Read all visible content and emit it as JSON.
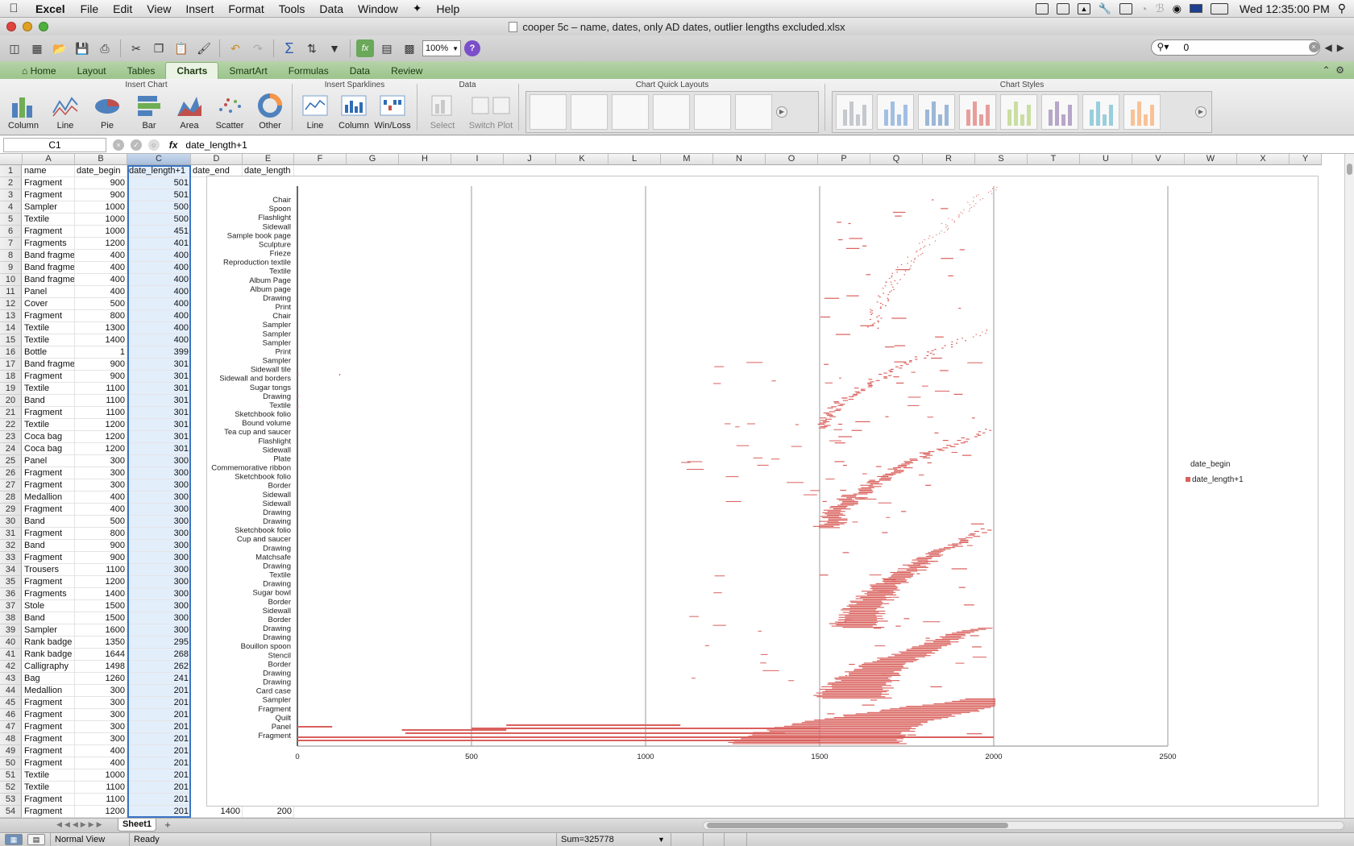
{
  "menubar": {
    "app_name": "Excel",
    "items": [
      "File",
      "Edit",
      "View",
      "Insert",
      "Format",
      "Tools",
      "Data",
      "Window",
      "Help"
    ],
    "clock": "Wed 12:35:00 PM"
  },
  "window": {
    "title": "cooper 5c – name, dates, only AD dates, outlier lengths excluded.xlsx"
  },
  "toolbar": {
    "zoom": "100%",
    "search_value": "0"
  },
  "ribbon": {
    "tabs": [
      "Home",
      "Layout",
      "Tables",
      "Charts",
      "SmartArt",
      "Formulas",
      "Data",
      "Review"
    ],
    "active_tab": "Charts",
    "groups": {
      "insert_chart": "Insert Chart",
      "insert_sparklines": "Insert Sparklines",
      "data": "Data",
      "quick_layouts": "Chart Quick Layouts",
      "chart_styles": "Chart Styles"
    },
    "insert_chart_buttons": [
      "Column",
      "Line",
      "Pie",
      "Bar",
      "Area",
      "Scatter",
      "Other"
    ],
    "sparkline_buttons": [
      "Line",
      "Column",
      "Win/Loss"
    ],
    "data_buttons": [
      "Select",
      "Switch Plot"
    ],
    "style_colors": [
      "#9aa0a8",
      "#5b8fd1",
      "#4f81bd",
      "#d9534f",
      "#a4c95a",
      "#8064a2",
      "#4bacc6",
      "#f79646"
    ]
  },
  "formula_bar": {
    "cell_ref": "C1",
    "formula": "date_length+1"
  },
  "grid": {
    "columns": [
      "A",
      "B",
      "C",
      "D",
      "E",
      "F",
      "G",
      "H",
      "I",
      "J",
      "K",
      "L",
      "M",
      "N",
      "O",
      "P",
      "Q",
      "R",
      "S",
      "T",
      "U",
      "V",
      "W",
      "X",
      "Y"
    ],
    "selected_column": "C",
    "headers": [
      "name",
      "date_begin",
      "date_length+1",
      "date_end",
      "date_length"
    ],
    "rows": [
      [
        "Fragment",
        "900",
        "501"
      ],
      [
        "Fragment",
        "900",
        "501"
      ],
      [
        "Sampler",
        "1000",
        "500"
      ],
      [
        "Textile",
        "1000",
        "500"
      ],
      [
        "Fragment",
        "1000",
        "451"
      ],
      [
        "Fragments",
        "1200",
        "401"
      ],
      [
        "Band fragme",
        "400",
        "400"
      ],
      [
        "Band fragme",
        "400",
        "400"
      ],
      [
        "Band fragme",
        "400",
        "400"
      ],
      [
        "Panel",
        "400",
        "400"
      ],
      [
        "Cover",
        "500",
        "400"
      ],
      [
        "Fragment",
        "800",
        "400"
      ],
      [
        "Textile",
        "1300",
        "400"
      ],
      [
        "Textile",
        "1400",
        "400"
      ],
      [
        "Bottle",
        "1",
        "399"
      ],
      [
        "Band fragme",
        "900",
        "301"
      ],
      [
        "Fragment",
        "900",
        "301"
      ],
      [
        "Textile",
        "1100",
        "301"
      ],
      [
        "Band",
        "1100",
        "301"
      ],
      [
        "Fragment",
        "1100",
        "301"
      ],
      [
        "Textile",
        "1200",
        "301"
      ],
      [
        "Coca bag",
        "1200",
        "301"
      ],
      [
        "Coca bag",
        "1200",
        "301"
      ],
      [
        "Panel",
        "300",
        "300"
      ],
      [
        "Fragment",
        "300",
        "300"
      ],
      [
        "Fragment",
        "300",
        "300"
      ],
      [
        "Medallion",
        "400",
        "300"
      ],
      [
        "Fragment",
        "400",
        "300"
      ],
      [
        "Band",
        "500",
        "300"
      ],
      [
        "Fragment",
        "800",
        "300"
      ],
      [
        "Band",
        "900",
        "300"
      ],
      [
        "Fragment",
        "900",
        "300"
      ],
      [
        "Trousers",
        "1100",
        "300"
      ],
      [
        "Fragment",
        "1200",
        "300"
      ],
      [
        "Fragments",
        "1400",
        "300"
      ],
      [
        "Stole",
        "1500",
        "300"
      ],
      [
        "Band",
        "1500",
        "300"
      ],
      [
        "Sampler",
        "1600",
        "300"
      ],
      [
        "Rank badge",
        "1350",
        "295"
      ],
      [
        "Rank badge",
        "1644",
        "268"
      ],
      [
        "Calligraphy",
        "1498",
        "262"
      ],
      [
        "Bag",
        "1260",
        "241"
      ],
      [
        "Medallion",
        "300",
        "201"
      ],
      [
        "Fragment",
        "300",
        "201"
      ],
      [
        "Fragment",
        "300",
        "201"
      ],
      [
        "Fragment",
        "300",
        "201"
      ],
      [
        "Fragment",
        "300",
        "201"
      ],
      [
        "Fragment",
        "400",
        "201"
      ],
      [
        "Fragment",
        "400",
        "201"
      ],
      [
        "Textile",
        "1000",
        "201"
      ],
      [
        "Textile",
        "1100",
        "201"
      ],
      [
        "Fragment",
        "1100",
        "201"
      ],
      [
        "Fragment",
        "1200",
        "201"
      ]
    ],
    "row54_extra": {
      "date_end": "1400",
      "date_length": "200"
    }
  },
  "chart_data": {
    "type": "bar",
    "orientation": "horizontal",
    "stacked": true,
    "categories": [
      "Fragment",
      "Panel",
      "Quilt",
      "Fragment",
      "Sampler",
      "Card case",
      "Drawing",
      "Drawing",
      "Border",
      "Stencil",
      "Bouillon spoon",
      "Drawing",
      "Drawing",
      "Border",
      "Sidewall",
      "Border",
      "Sugar bowl",
      "Drawing",
      "Textile",
      "Drawing",
      "Matchsafe",
      "Drawing",
      "Cup and saucer",
      "Sketchbook folio",
      "Drawing",
      "Drawing",
      "Sidewall",
      "Sidewall",
      "Border",
      "Sketchbook folio",
      "Commemorative ribbon",
      "Plate",
      "Sidewall",
      "Flashlight",
      "Tea cup and saucer",
      "Bound volume",
      "Sketchbook folio",
      "Textile",
      "Drawing",
      "Sugar tongs",
      "Sidewall and borders",
      "Sidewall tile",
      "Sampler",
      "Print",
      "Sampler",
      "Sampler",
      "Sampler",
      "Chair",
      "Print",
      "Drawing",
      "Album page",
      "Album Page",
      "Textile",
      "Reproduction textile",
      "Frieze",
      "Sculpture",
      "Sample book page",
      "Sidewall",
      "Flashlight",
      "Spoon",
      "Chair"
    ],
    "series": [
      {
        "name": "date_begin",
        "hidden_fill": true
      },
      {
        "name": "date_length+1",
        "color": "#d9605c"
      }
    ],
    "xlim": [
      0,
      2500
    ],
    "xticks": [
      "0",
      "500",
      "1000",
      "1500",
      "2000",
      "2500"
    ],
    "legend": [
      "date_begin",
      "date_length+1"
    ],
    "legend_position": "right",
    "gridlines": "vertical"
  },
  "sheets": {
    "tabs": [
      "Sheet1"
    ],
    "active": "Sheet1"
  },
  "statusbar": {
    "view": "Normal View",
    "status": "Ready",
    "sum": "Sum=325778"
  }
}
